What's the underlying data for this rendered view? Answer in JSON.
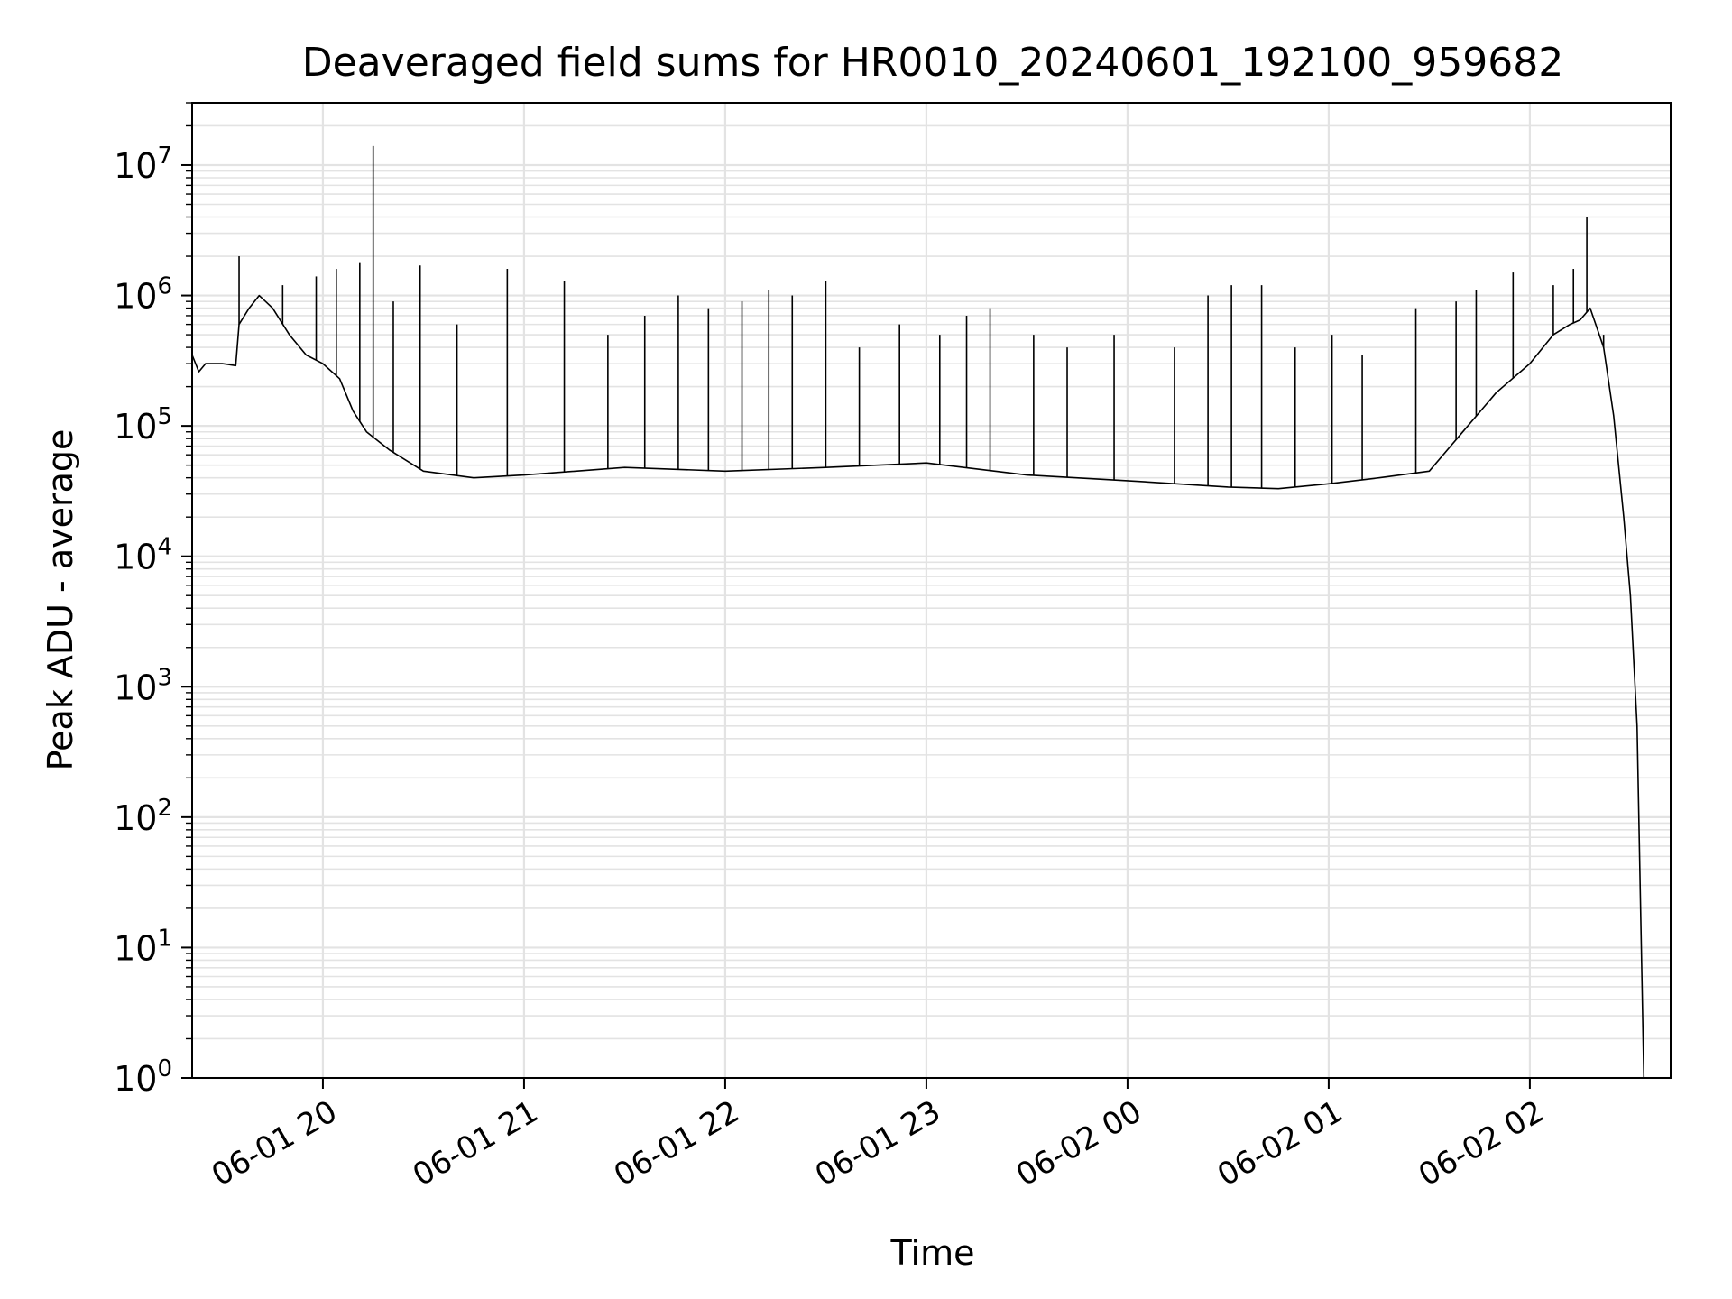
{
  "chart_data": {
    "type": "line",
    "title": "Deaveraged field sums for HR0010_20240601_192100_959682",
    "xlabel": "Time",
    "ylabel": "Peak ADU - average",
    "yscale": "log",
    "ylim": [
      1,
      30000000
    ],
    "xlim": [
      "2024-06-01 19:21",
      "2024-06-02 02:42"
    ],
    "grid": true,
    "x_ticks": [
      {
        "t": "2024-06-01 20:00",
        "label": "06-01 20"
      },
      {
        "t": "2024-06-01 21:00",
        "label": "06-01 21"
      },
      {
        "t": "2024-06-01 22:00",
        "label": "06-01 22"
      },
      {
        "t": "2024-06-01 23:00",
        "label": "06-01 23"
      },
      {
        "t": "2024-06-02 00:00",
        "label": "06-02 00"
      },
      {
        "t": "2024-06-02 01:00",
        "label": "06-02 01"
      },
      {
        "t": "2024-06-02 02:00",
        "label": "06-02 02"
      }
    ],
    "y_ticks": [
      {
        "v": 1,
        "label": "10",
        "exp": "0"
      },
      {
        "v": 10,
        "label": "10",
        "exp": "1"
      },
      {
        "v": 100,
        "label": "10",
        "exp": "2"
      },
      {
        "v": 1000,
        "label": "10",
        "exp": "3"
      },
      {
        "v": 10000,
        "label": "10",
        "exp": "4"
      },
      {
        "v": 100000,
        "label": "10",
        "exp": "5"
      },
      {
        "v": 1000000,
        "label": "10",
        "exp": "6"
      },
      {
        "v": 10000000,
        "label": "10",
        "exp": "7"
      }
    ],
    "series": [
      {
        "color": "#000000",
        "points": [
          [
            "2024-06-01 19:21",
            350000
          ],
          [
            "2024-06-01 19:23",
            260000
          ],
          [
            "2024-06-01 19:25",
            300000
          ],
          [
            "2024-06-01 19:30",
            300000
          ],
          [
            "2024-06-01 19:34",
            290000
          ],
          [
            "2024-06-01 19:35",
            600000
          ],
          [
            "2024-06-01 19:38",
            800000
          ],
          [
            "2024-06-01 19:41",
            1000000
          ],
          [
            "2024-06-01 19:45",
            800000
          ],
          [
            "2024-06-01 19:50",
            500000
          ],
          [
            "2024-06-01 19:55",
            350000
          ],
          [
            "2024-06-01 20:00",
            300000
          ],
          [
            "2024-06-01 20:05",
            230000
          ],
          [
            "2024-06-01 20:09",
            130000
          ],
          [
            "2024-06-01 20:13",
            90000
          ],
          [
            "2024-06-01 20:20",
            65000
          ],
          [
            "2024-06-01 20:30",
            45000
          ],
          [
            "2024-06-01 20:45",
            40000
          ],
          [
            "2024-06-01 21:00",
            42000
          ],
          [
            "2024-06-01 21:30",
            48000
          ],
          [
            "2024-06-01 22:00",
            45000
          ],
          [
            "2024-06-01 22:30",
            48000
          ],
          [
            "2024-06-01 23:00",
            52000
          ],
          [
            "2024-06-01 23:30",
            42000
          ],
          [
            "2024-06-02 00:00",
            38000
          ],
          [
            "2024-06-02 00:30",
            34000
          ],
          [
            "2024-06-02 00:45",
            33000
          ],
          [
            "2024-06-02 01:00",
            36000
          ],
          [
            "2024-06-02 01:15",
            40000
          ],
          [
            "2024-06-02 01:30",
            45000
          ],
          [
            "2024-06-02 01:40",
            90000
          ],
          [
            "2024-06-02 01:50",
            180000
          ],
          [
            "2024-06-02 02:00",
            300000
          ],
          [
            "2024-06-02 02:07",
            500000
          ],
          [
            "2024-06-02 02:12",
            600000
          ],
          [
            "2024-06-02 02:15",
            650000
          ],
          [
            "2024-06-02 02:18",
            800000
          ],
          [
            "2024-06-02 02:22",
            400000
          ],
          [
            "2024-06-02 02:25",
            120000
          ],
          [
            "2024-06-02 02:28",
            20000
          ],
          [
            "2024-06-02 02:30",
            5000
          ],
          [
            "2024-06-02 02:32",
            500
          ],
          [
            "2024-06-02 02:34",
            1
          ]
        ],
        "spikes": [
          [
            "2024-06-01 19:35",
            2000000
          ],
          [
            "2024-06-01 19:48",
            1200000
          ],
          [
            "2024-06-01 19:58",
            1400000
          ],
          [
            "2024-06-01 20:04",
            1600000
          ],
          [
            "2024-06-01 20:11",
            1800000
          ],
          [
            "2024-06-01 20:15",
            14000000
          ],
          [
            "2024-06-01 20:21",
            900000
          ],
          [
            "2024-06-01 20:29",
            1700000
          ],
          [
            "2024-06-01 20:40",
            600000
          ],
          [
            "2024-06-01 20:55",
            1600000
          ],
          [
            "2024-06-01 21:12",
            1300000
          ],
          [
            "2024-06-01 21:25",
            500000
          ],
          [
            "2024-06-01 21:36",
            700000
          ],
          [
            "2024-06-01 21:46",
            1000000
          ],
          [
            "2024-06-01 21:55",
            800000
          ],
          [
            "2024-06-01 22:05",
            900000
          ],
          [
            "2024-06-01 22:13",
            1100000
          ],
          [
            "2024-06-01 22:20",
            1000000
          ],
          [
            "2024-06-01 22:30",
            1300000
          ],
          [
            "2024-06-01 22:40",
            400000
          ],
          [
            "2024-06-01 22:52",
            600000
          ],
          [
            "2024-06-01 23:04",
            500000
          ],
          [
            "2024-06-01 23:12",
            700000
          ],
          [
            "2024-06-01 23:19",
            800000
          ],
          [
            "2024-06-01 23:32",
            500000
          ],
          [
            "2024-06-01 23:42",
            400000
          ],
          [
            "2024-06-01 23:56",
            500000
          ],
          [
            "2024-06-02 00:14",
            400000
          ],
          [
            "2024-06-02 00:24",
            1000000
          ],
          [
            "2024-06-02 00:31",
            1200000
          ],
          [
            "2024-06-02 00:40",
            1200000
          ],
          [
            "2024-06-02 00:50",
            400000
          ],
          [
            "2024-06-02 01:01",
            500000
          ],
          [
            "2024-06-02 01:10",
            350000
          ],
          [
            "2024-06-02 01:26",
            800000
          ],
          [
            "2024-06-02 01:38",
            900000
          ],
          [
            "2024-06-02 01:44",
            1100000
          ],
          [
            "2024-06-02 01:55",
            1500000
          ],
          [
            "2024-06-02 02:07",
            1200000
          ],
          [
            "2024-06-02 02:13",
            1600000
          ],
          [
            "2024-06-02 02:17",
            4000000
          ],
          [
            "2024-06-02 02:22",
            500000
          ]
        ]
      }
    ]
  }
}
